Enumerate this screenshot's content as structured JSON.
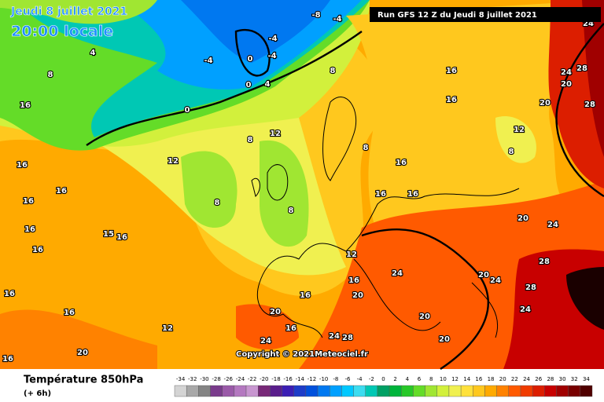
{
  "header": {
    "date": "Jeudi 8 juillet 2021",
    "time": "20:00 locale",
    "run": "Run GFS 12 Z du Jeudi 8 juillet 2021"
  },
  "copyright": "Copyright © 2021Meteociel.fr",
  "map_labels": [
    "4",
    "8",
    "16",
    "16",
    "16",
    "16",
    "16",
    "16",
    "16",
    "16",
    "16",
    "15",
    "16",
    "12",
    "12",
    "8",
    "20",
    "8",
    "12",
    "8",
    "12",
    "16",
    "20",
    "16",
    "20",
    "24",
    "24",
    "28",
    "16",
    "16",
    "16",
    "20",
    "12",
    "8",
    "16",
    "16",
    "16",
    "20",
    "24",
    "28",
    "24",
    "20",
    "28",
    "24",
    "20",
    "20",
    "24",
    "24",
    "28",
    "20",
    "28",
    "24",
    "-8",
    "-4",
    "-4",
    "-4",
    "0",
    "4",
    "0",
    "0",
    "-4",
    "8",
    "8"
  ],
  "legend": {
    "title": "Température 850hPa",
    "subtitle": "(+ 6h)",
    "scale": {
      "values": [
        -34,
        -32,
        -30,
        -28,
        -26,
        -24,
        -22,
        -20,
        -18,
        -16,
        -14,
        -12,
        -10,
        -8,
        -6,
        -4,
        -2,
        0,
        2,
        4,
        6,
        8,
        10,
        12,
        14,
        16,
        18,
        20,
        22,
        24,
        26,
        28,
        30,
        32,
        34
      ],
      "colors": [
        "#d4d4d4",
        "#a8a8a8",
        "#848484",
        "#7a3c8c",
        "#9a5aa8",
        "#b478c0",
        "#c896d0",
        "#782878",
        "#5a1e8c",
        "#3c1eb4",
        "#1e3cc8",
        "#0050dc",
        "#0078f0",
        "#00a0ff",
        "#00c8ff",
        "#3cdcf0",
        "#00c8b4",
        "#00a064",
        "#00b43c",
        "#28c828",
        "#64dc28",
        "#a0e632",
        "#d2f03c",
        "#f0f050",
        "#ffe13c",
        "#ffc81e",
        "#ffaa00",
        "#ff8200",
        "#ff5a00",
        "#f03c00",
        "#dc1e00",
        "#c80000",
        "#a00000",
        "#780000",
        "#500000"
      ]
    }
  }
}
